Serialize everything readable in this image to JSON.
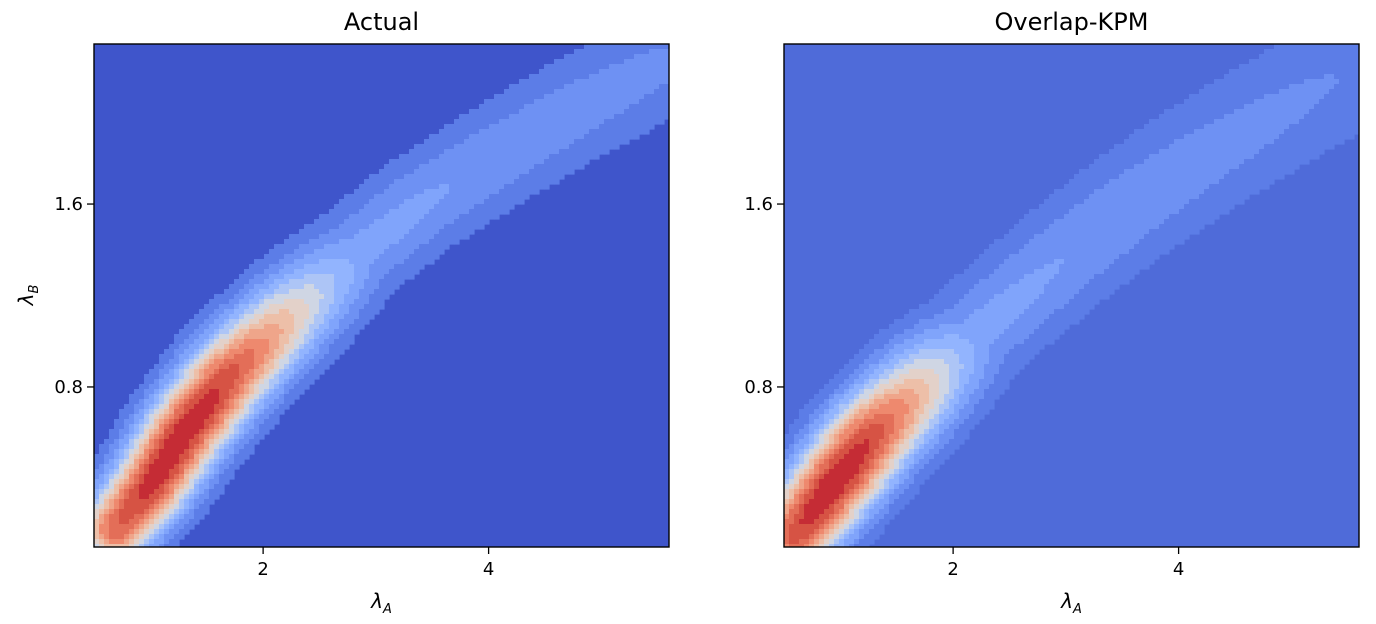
{
  "chart_data": [
    {
      "type": "contour",
      "title": "Actual",
      "xlabel": "λ",
      "xlabel_sub": "A",
      "ylabel": "λ",
      "ylabel_sub": "B",
      "xlim": [
        0.5,
        5.6
      ],
      "ylim": [
        0.1,
        2.3
      ],
      "xticks": [
        2,
        4
      ],
      "yticks": [
        0.8,
        1.6
      ],
      "xtick_labels": [
        "2",
        "4"
      ],
      "ytick_labels": [
        "0.8",
        "1.6"
      ],
      "colormap": "coolwarm",
      "background_color": "#3f55cb",
      "ridge": {
        "points": [
          [
            0.7,
            0.18
          ],
          [
            1.0,
            0.37
          ],
          [
            1.3,
            0.6
          ],
          [
            1.7,
            0.85
          ],
          [
            2.2,
            1.1
          ],
          [
            2.8,
            1.37
          ],
          [
            3.4,
            1.6
          ],
          [
            4.1,
            1.82
          ],
          [
            4.8,
            2.02
          ],
          [
            5.5,
            2.2
          ]
        ],
        "peak_x": 1.25,
        "spread_along": 0.95,
        "tail_level": 0.32,
        "width_base": 0.1,
        "width_growth": 0.015
      },
      "levels": 14
    },
    {
      "type": "contour",
      "title": "Overlap-KPM",
      "xlabel": "λ",
      "xlabel_sub": "A",
      "ylabel": "",
      "ylabel_sub": "",
      "xlim": [
        0.5,
        5.6
      ],
      "ylim": [
        0.1,
        2.3
      ],
      "xticks": [
        2,
        4
      ],
      "yticks": [
        0.8,
        1.6
      ],
      "xtick_labels": [
        "2",
        "4"
      ],
      "ytick_labels": [
        "0.8",
        "1.6"
      ],
      "colormap": "coolwarm",
      "background_color": "#4f6bd9",
      "ridge": {
        "points": [
          [
            0.6,
            0.15
          ],
          [
            0.9,
            0.35
          ],
          [
            1.3,
            0.6
          ],
          [
            1.8,
            0.85
          ],
          [
            2.4,
            1.12
          ],
          [
            3.0,
            1.37
          ],
          [
            3.6,
            1.6
          ],
          [
            4.2,
            1.8
          ],
          [
            4.8,
            1.98
          ],
          [
            5.4,
            2.15
          ]
        ],
        "peak_x": 0.95,
        "spread_along": 0.75,
        "tail_level": 0.3,
        "width_base": 0.11,
        "width_growth": 0.02
      },
      "levels": 14
    }
  ]
}
